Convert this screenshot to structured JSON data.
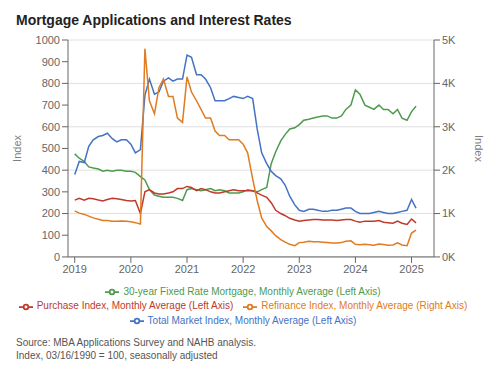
{
  "chart_data": {
    "type": "line",
    "title": "Mortgage Applications and Interest Rates",
    "ylabel": "Index",
    "y2label": "Index",
    "x": [
      2019.0,
      2019.08,
      2019.17,
      2019.25,
      2019.33,
      2019.42,
      2019.5,
      2019.58,
      2019.67,
      2019.75,
      2019.83,
      2019.92,
      2020.0,
      2020.08,
      2020.17,
      2020.25,
      2020.33,
      2020.42,
      2020.5,
      2020.58,
      2020.67,
      2020.75,
      2020.83,
      2020.92,
      2021.0,
      2021.08,
      2021.17,
      2021.25,
      2021.33,
      2021.42,
      2021.5,
      2021.58,
      2021.67,
      2021.75,
      2021.83,
      2021.92,
      2022.0,
      2022.08,
      2022.17,
      2022.25,
      2022.33,
      2022.42,
      2022.5,
      2022.58,
      2022.67,
      2022.75,
      2022.83,
      2022.92,
      2023.0,
      2023.08,
      2023.17,
      2023.25,
      2023.33,
      2023.42,
      2023.5,
      2023.58,
      2023.67,
      2023.75,
      2023.83,
      2023.92,
      2024.0,
      2024.08,
      2024.17,
      2024.25,
      2024.33,
      2024.42,
      2024.5,
      2024.58,
      2024.67,
      2024.75,
      2024.83,
      2024.92,
      2025.0,
      2025.08
    ],
    "xlim": [
      2018.88,
      2025.4
    ],
    "xticks": [
      2019,
      2020,
      2021,
      2022,
      2023,
      2024,
      2025
    ],
    "ylim": [
      0,
      1000
    ],
    "yticks": [
      0,
      100,
      200,
      300,
      400,
      500,
      600,
      700,
      800,
      900,
      1000
    ],
    "y2lim": [
      0,
      5000
    ],
    "y2ticks": [
      {
        "value": 0,
        "label": "0K"
      },
      {
        "value": 1000,
        "label": "1K"
      },
      {
        "value": 2000,
        "label": "2K"
      },
      {
        "value": 3000,
        "label": "3K"
      },
      {
        "value": 4000,
        "label": "4K"
      },
      {
        "value": 5000,
        "label": "5K"
      }
    ],
    "grid": true,
    "legend": "bottom",
    "annotations": [
      "Source: MBA Applications Survey and NAHB analysis.",
      "Index, 03/16/1990 = 100, seasonally adjusted"
    ],
    "series": [
      {
        "name": "30-year Fixed Rate Mortgage, Monthly Average (Left Axis)",
        "color": "#4e9a4e",
        "values": [
          475,
          455,
          440,
          415,
          410,
          405,
          395,
          400,
          395,
          400,
          400,
          395,
          395,
          390,
          370,
          355,
          310,
          285,
          280,
          275,
          275,
          275,
          270,
          260,
          310,
          315,
          310,
          305,
          310,
          315,
          305,
          310,
          305,
          295,
          295,
          295,
          300,
          310,
          305,
          300,
          310,
          320,
          430,
          485,
          535,
          565,
          590,
          595,
          610,
          630,
          635,
          640,
          645,
          650,
          650,
          640,
          640,
          650,
          680,
          700,
          770,
          750,
          700,
          690,
          680,
          700,
          680,
          680,
          660,
          680,
          640,
          630,
          670,
          695
        ]
      },
      {
        "name": "Total Market Index, Monthly Average (Left Axis)",
        "color": "#4472c4",
        "values": [
          380,
          440,
          435,
          510,
          540,
          555,
          560,
          570,
          545,
          530,
          540,
          540,
          520,
          480,
          495,
          745,
          820,
          750,
          760,
          810,
          825,
          810,
          820,
          820,
          930,
          920,
          840,
          840,
          820,
          780,
          720,
          720,
          720,
          730,
          740,
          735,
          730,
          740,
          730,
          590,
          480,
          430,
          395,
          375,
          360,
          330,
          280,
          240,
          215,
          210,
          220,
          220,
          215,
          210,
          210,
          215,
          215,
          220,
          225,
          225,
          210,
          200,
          200,
          200,
          205,
          210,
          205,
          200,
          200,
          205,
          210,
          215,
          265,
          225
        ]
      },
      {
        "name": "Purchase Index, Monthly Average (Left Axis)",
        "color": "#c0392b",
        "values": [
          262,
          270,
          262,
          270,
          268,
          262,
          258,
          265,
          270,
          268,
          265,
          260,
          258,
          260,
          200,
          300,
          310,
          295,
          290,
          290,
          295,
          300,
          315,
          315,
          325,
          320,
          305,
          315,
          310,
          300,
          295,
          295,
          300,
          305,
          310,
          305,
          305,
          305,
          305,
          295,
          285,
          275,
          250,
          215,
          200,
          190,
          178,
          170,
          165,
          168,
          170,
          172,
          172,
          170,
          170,
          170,
          168,
          170,
          172,
          172,
          165,
          160,
          165,
          165,
          165,
          168,
          160,
          158,
          155,
          165,
          155,
          150,
          175,
          157
        ]
      },
      {
        "name": "Refinance Index, Monthly Average (Right Axis)",
        "color": "#e07b20",
        "axis": "y2",
        "values": [
          1060,
          1010,
          980,
          940,
          900,
          870,
          840,
          840,
          820,
          820,
          830,
          820,
          810,
          790,
          760,
          4800,
          3600,
          3300,
          3900,
          4100,
          3700,
          3700,
          3200,
          3100,
          4150,
          3800,
          3600,
          3400,
          3200,
          3200,
          2900,
          2800,
          2800,
          2700,
          2700,
          2700,
          2600,
          2400,
          1800,
          1300,
          900,
          700,
          600,
          490,
          400,
          340,
          290,
          260,
          330,
          340,
          360,
          350,
          350,
          340,
          330,
          320,
          320,
          330,
          360,
          370,
          290,
          280,
          290,
          280,
          270,
          295,
          285,
          270,
          275,
          325,
          275,
          260,
          550,
          620
        ]
      }
    ]
  }
}
